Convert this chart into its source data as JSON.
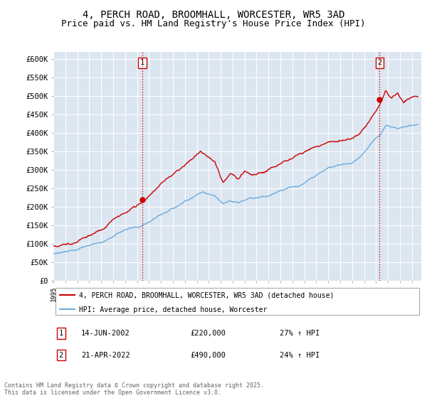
{
  "title": "4, PERCH ROAD, BROOMHALL, WORCESTER, WR5 3AD",
  "subtitle": "Price paid vs. HM Land Registry's House Price Index (HPI)",
  "ylabel_ticks": [
    "£0",
    "£50K",
    "£100K",
    "£150K",
    "£200K",
    "£250K",
    "£300K",
    "£350K",
    "£400K",
    "£450K",
    "£500K",
    "£550K",
    "£600K"
  ],
  "ytick_vals": [
    0,
    50000,
    100000,
    150000,
    200000,
    250000,
    300000,
    350000,
    400000,
    450000,
    500000,
    550000,
    600000
  ],
  "ylim": [
    0,
    620000
  ],
  "xlim_start": 1995.0,
  "xlim_end": 2025.8,
  "bg_color": "#dce6f1",
  "red_color": "#cc0000",
  "blue_color": "#6aabdc",
  "legend_label_red": "4, PERCH ROAD, BROOMHALL, WORCESTER, WR5 3AD (detached house)",
  "legend_label_blue": "HPI: Average price, detached house, Worcester",
  "marker1_x": 2002.45,
  "marker1_y": 220000,
  "marker1_label": "1",
  "marker2_x": 2022.3,
  "marker2_y": 490000,
  "marker2_label": "2",
  "table_rows": [
    {
      "num": "1",
      "date": "14-JUN-2002",
      "price": "£220,000",
      "hpi": "27% ↑ HPI"
    },
    {
      "num": "2",
      "date": "21-APR-2022",
      "price": "£490,000",
      "hpi": "24% ↑ HPI"
    }
  ],
  "footer": "Contains HM Land Registry data © Crown copyright and database right 2025.\nThis data is licensed under the Open Government Licence v3.0.",
  "title_fontsize": 10,
  "subtitle_fontsize": 9
}
